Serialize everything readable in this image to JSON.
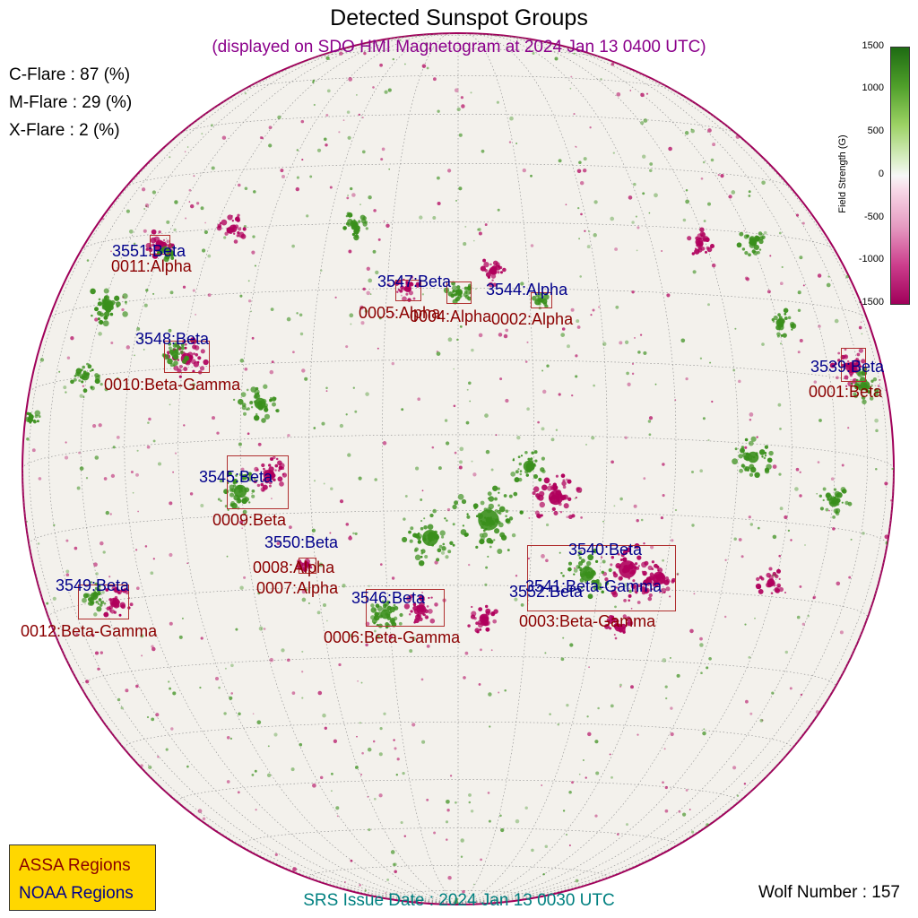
{
  "title": "Detected Sunspot Groups",
  "subtitle": "(displayed on SDO HMI Magnetogram at 2024 Jan 13 0400 UTC)",
  "flare_probabilities": {
    "c": "C-Flare : 87 (%)",
    "m": "M-Flare : 29 (%)",
    "x": "X-Flare :  2 (%)"
  },
  "colorbar": {
    "label": "Field Strength (G)",
    "ticks": [
      "1500",
      "1000",
      "500",
      "0",
      "-500",
      "-1000",
      "-1500"
    ]
  },
  "legend": {
    "assa": "ASSA Regions",
    "noaa": "NOAA Regions"
  },
  "srs_issue_date": "SRS Issue Date : 2024 Jan 13 0030 UTC",
  "wolf_number": "Wolf Number : 157",
  "noaa_labels": {
    "r3551": "3551:Beta",
    "r3547": "3547:Beta",
    "r3544": "3544:Alpha",
    "r3548": "3548:Beta",
    "r3539": "3539:Beta",
    "r3545": "3545:Beta",
    "r3550": "3550:Beta",
    "r3540": "3540:Beta",
    "r3549": "3549:Beta",
    "r3546": "3546:Beta",
    "r3552": "3552:Beta",
    "r3541": "3541:Beta-Gamma"
  },
  "assa_labels": {
    "a0011": "0011:Alpha",
    "a0005": "0005:Alpha",
    "a0004": "0004:Alpha",
    "a0002": "0002:Alpha",
    "a0010": "0010:Beta-Gamma",
    "a0001": "0001:Beta",
    "a0009": "0009:Beta",
    "a0008": "0008:Alpha",
    "a0007": "0007:Alpha",
    "a0012": "0012:Beta-Gamma",
    "a0006": "0006:Beta-Gamma",
    "a0003": "0003:Beta-Gamma"
  },
  "colors": {
    "positive_field": "#3a8f1c",
    "negative_field": "#b0005c",
    "disk_background": "#f3f1ec",
    "box": "#b03030"
  }
}
